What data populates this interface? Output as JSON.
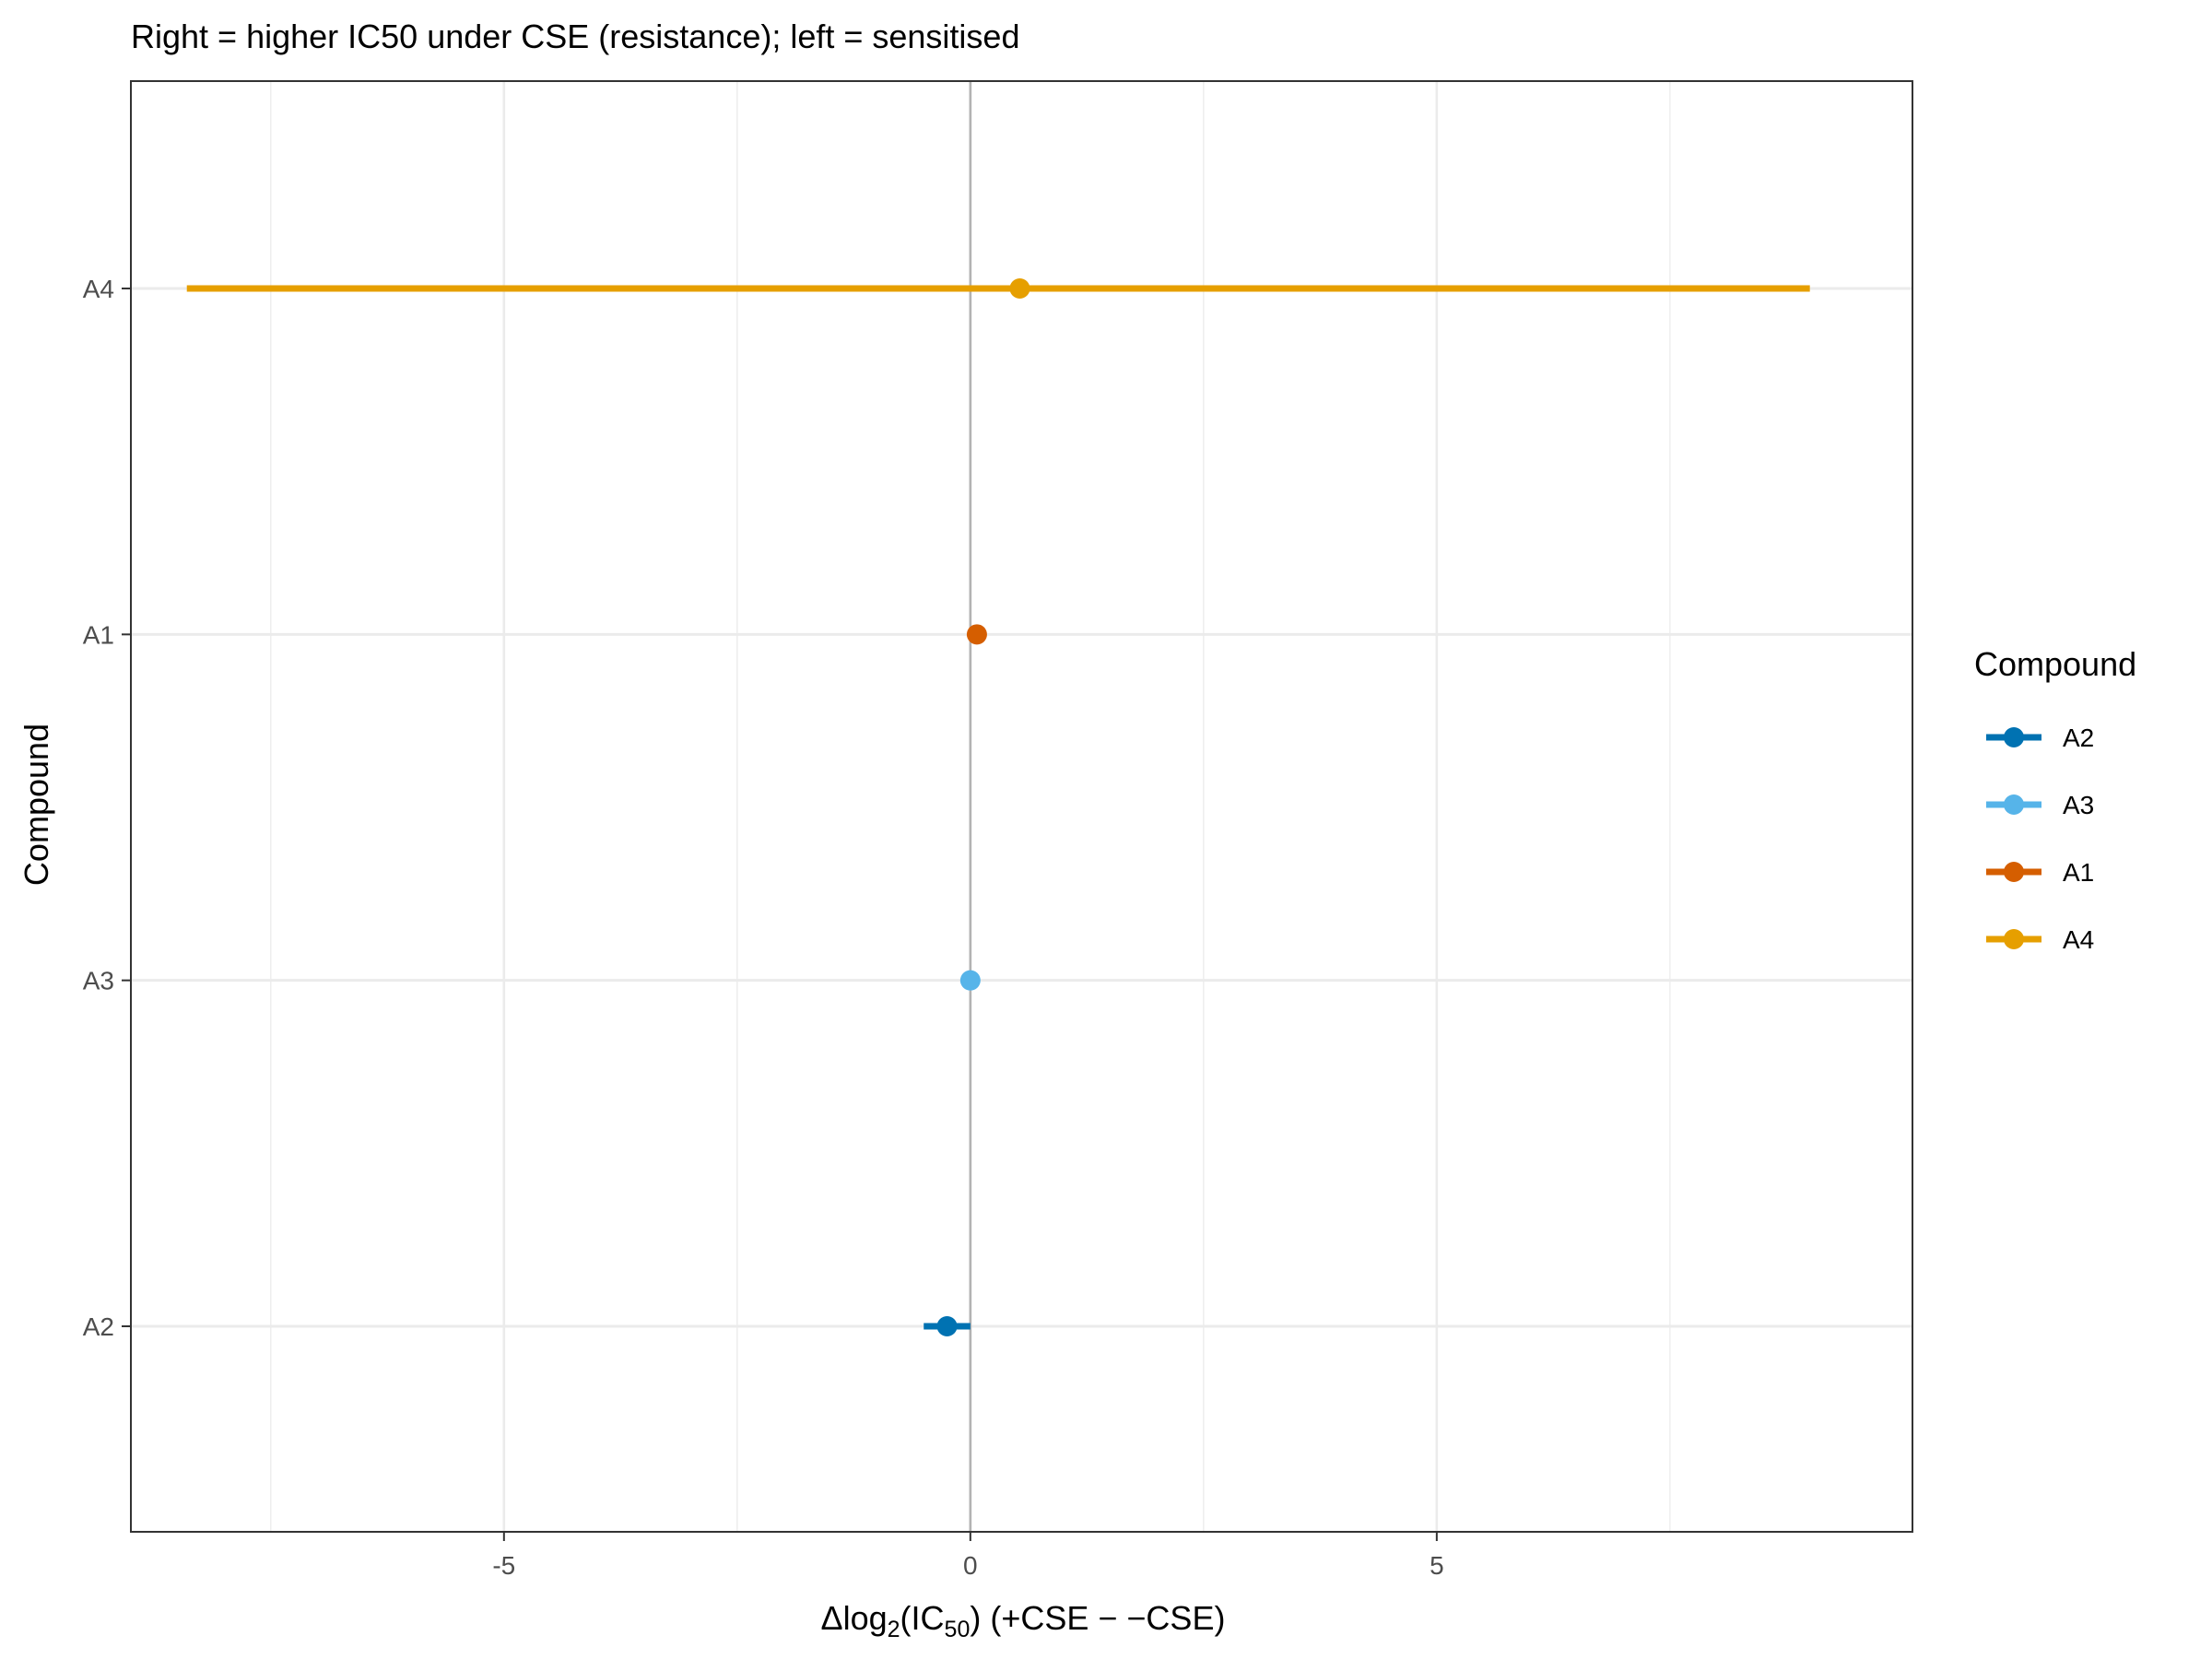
{
  "chart_data": {
    "type": "dot-interval",
    "subtitle": "Right = higher IC50 under CSE (resistance); left = sensitised",
    "xlabel": {
      "prefix": "Δlog",
      "sub1": "2",
      "mid": "(IC",
      "sub2": "50",
      "suffix": ") (+CSE − −CSE)"
    },
    "ylabel": "Compound",
    "xlim": [
      -9.0,
      10.1
    ],
    "x_ticks": [
      -5,
      0,
      5
    ],
    "x_tick_labels": [
      "-5",
      "0",
      "5"
    ],
    "x_minor_ticks": [
      -7.5,
      -2.5,
      2.5,
      7.5
    ],
    "reference_line_x": 0,
    "categories": [
      "A2",
      "A3",
      "A1",
      "A4"
    ],
    "points": [
      {
        "compound": "A2",
        "estimate": -0.25,
        "lower": -0.5,
        "upper": 0.0
      },
      {
        "compound": "A3",
        "estimate": 0.0,
        "lower": 0.0,
        "upper": 0.0
      },
      {
        "compound": "A1",
        "estimate": 0.07,
        "lower": 0.0,
        "upper": 0.15
      },
      {
        "compound": "A4",
        "estimate": 0.53,
        "lower": -8.4,
        "upper": 9.0
      }
    ],
    "legend": {
      "title": "Compound",
      "position": "right",
      "entries": [
        {
          "label": "A2",
          "color": "#0072B2"
        },
        {
          "label": "A3",
          "color": "#56B4E9"
        },
        {
          "label": "A1",
          "color": "#D55E00"
        },
        {
          "label": "A4",
          "color": "#E69F00"
        }
      ]
    },
    "grid": true,
    "colors": {
      "panel_border": "#333333",
      "grid": "#ebebeb",
      "zero_line": "#b3b3b3"
    }
  }
}
